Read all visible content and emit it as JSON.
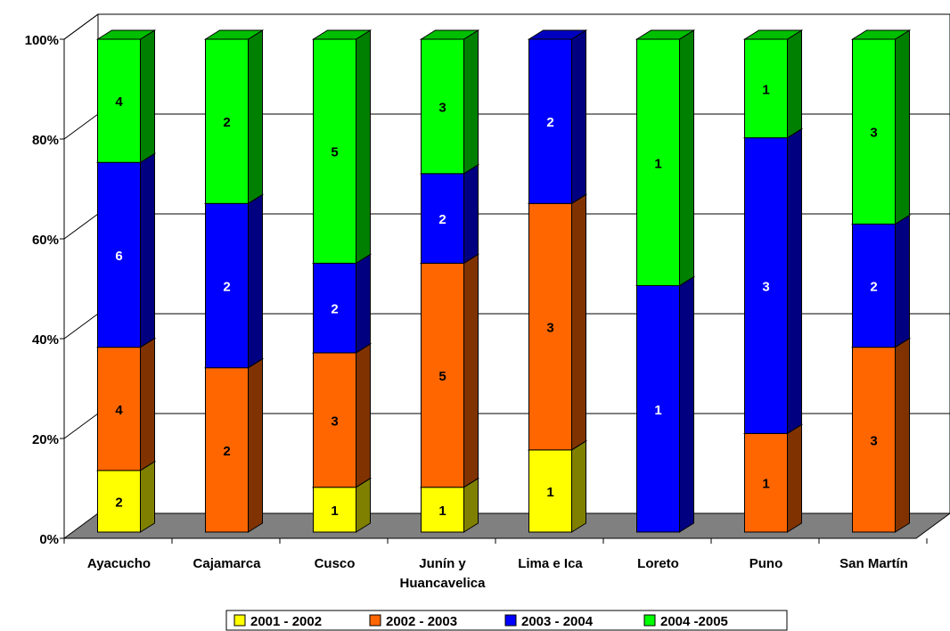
{
  "chart_data": {
    "type": "bar",
    "stacked": "percent",
    "three_d": true,
    "title": "",
    "xlabel": "",
    "ylabel": "",
    "ylim": [
      0,
      100
    ],
    "yticks": [
      "0%",
      "20%",
      "40%",
      "60%",
      "80%",
      "100%"
    ],
    "grid": true,
    "legend_position": "bottom",
    "categories": [
      [
        "Ayacucho"
      ],
      [
        "Cajamarca"
      ],
      [
        "Cusco"
      ],
      [
        "Junín  y",
        "Huancavelica"
      ],
      [
        "Lima e Ica"
      ],
      [
        "Loreto"
      ],
      [
        "Puno"
      ],
      [
        "San Martín"
      ]
    ],
    "series": [
      {
        "name": "2001 - 2002",
        "color": "#ffff00",
        "values": [
          2,
          0,
          1,
          1,
          1,
          0,
          0,
          0
        ]
      },
      {
        "name": "2002 - 2003",
        "color": "#ff6600",
        "values": [
          4,
          2,
          3,
          5,
          3,
          0,
          1,
          3
        ]
      },
      {
        "name": "2003 - 2004",
        "color": "#0000ff",
        "values": [
          6,
          2,
          2,
          2,
          2,
          1,
          3,
          2
        ]
      },
      {
        "name": "2004 -2005",
        "color": "#00ff00",
        "values": [
          4,
          2,
          5,
          3,
          0,
          1,
          1,
          3
        ]
      }
    ],
    "label_colors": [
      "#000000",
      "#000000",
      "#ffffff",
      "#000000"
    ]
  }
}
